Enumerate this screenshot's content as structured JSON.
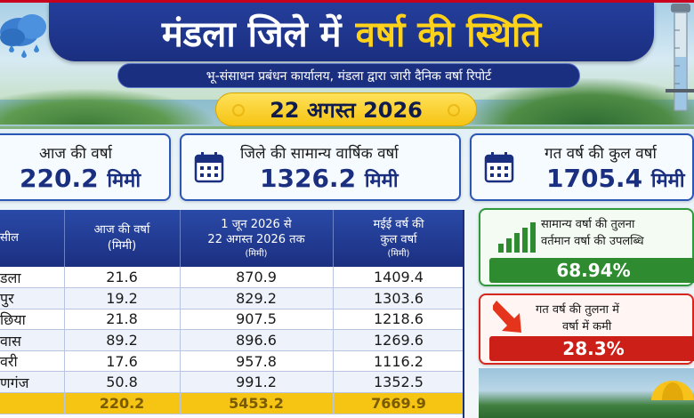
{
  "header": {
    "title_part1": "मंडला जिले में",
    "title_part2": "वर्षा की स्थिति",
    "subtitle": "भू-संसाधन प्रबंधन कार्यालय, मंडला द्वारा जारी दैनिक वर्षा रिपोर्ट",
    "date": "22 अगस्त 2026"
  },
  "stats": [
    {
      "label": "आज की वर्षा",
      "value": "220.2",
      "unit": "मिमी"
    },
    {
      "label": "जिले की सामान्य वार्षिक वर्षा",
      "value": "1326.2",
      "unit": "मिमी"
    },
    {
      "label": "गत वर्ष की कुल वर्षा",
      "value": "1705.4",
      "unit": "मिमी"
    }
  ],
  "table": {
    "headers": [
      {
        "main": "सील",
        "sub": ""
      },
      {
        "main": "आज की वर्षा",
        "sub": "(मिमी)"
      },
      {
        "main": "1 जून 2026 से",
        "main2": "22 अगस्त 2026 तक",
        "sub": "(मिमी)"
      },
      {
        "main": "मईई वर्ष की",
        "main2": "कुल वर्षा",
        "sub": "(मिमी)"
      }
    ],
    "rows": [
      {
        "tehsil": "डला",
        "today": "21.6",
        "since_june": "870.9",
        "last_year": "1409.4"
      },
      {
        "tehsil": "पुर",
        "today": "19.2",
        "since_june": "829.2",
        "last_year": "1303.6"
      },
      {
        "tehsil": "छिया",
        "today": "21.8",
        "since_june": "907.5",
        "last_year": "1218.6"
      },
      {
        "tehsil": "वास",
        "today": "89.2",
        "since_june": "896.6",
        "last_year": "1269.6"
      },
      {
        "tehsil": "वरी",
        "today": "17.6",
        "since_june": "957.8",
        "last_year": "1116.2"
      },
      {
        "tehsil": "णगंज",
        "today": "50.8",
        "since_june": "991.2",
        "last_year": "1352.5"
      }
    ],
    "total": {
      "tehsil": "",
      "today": "220.2",
      "since_june": "5453.2",
      "last_year": "7669.9"
    }
  },
  "comparisons": {
    "normal": {
      "line1": "सामान्य वर्षा की तुलना",
      "line2": "वर्तमान वर्षा की उपलब्धि",
      "value": "68.94%"
    },
    "last_year": {
      "line1": "गत वर्ष की तुलना में",
      "line2": "वर्षा में कमी",
      "value": "28.3%"
    }
  },
  "colors": {
    "navy": "#1b2f80",
    "yellow": "#ffd21a",
    "green": "#2e8b2f",
    "red": "#cc1f17"
  },
  "icons": [
    "rain-cloud-icon",
    "rain-gauge-icon",
    "calendar-icon",
    "rising-bars-icon",
    "down-arrow-icon",
    "umbrella-icon"
  ]
}
